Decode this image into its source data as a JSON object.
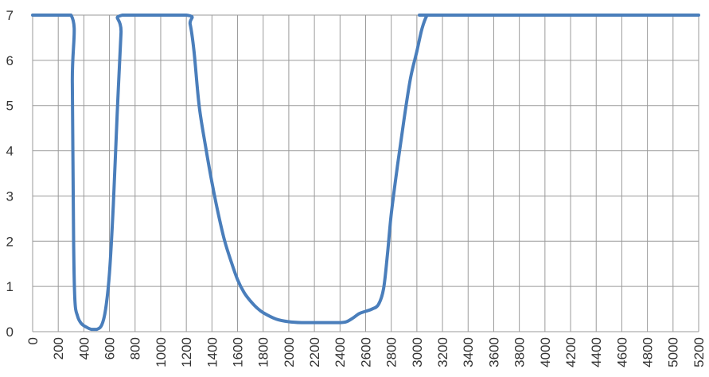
{
  "chart_data": {
    "type": "line",
    "title": "",
    "xlabel": "",
    "ylabel": "",
    "xlim": [
      0,
      5200
    ],
    "ylim": [
      0,
      7
    ],
    "x_ticks": [
      0,
      200,
      400,
      600,
      800,
      1000,
      1200,
      1400,
      1600,
      1800,
      2000,
      2200,
      2400,
      2600,
      2800,
      3000,
      3200,
      3400,
      3600,
      3800,
      4000,
      4200,
      4400,
      4600,
      4800,
      5000,
      5200
    ],
    "y_ticks": [
      0,
      1,
      2,
      3,
      4,
      5,
      6,
      7
    ],
    "grid": true,
    "x_tick_rotation": -90,
    "legend": "none",
    "colors": {
      "series": "#4a7ebb",
      "grid": "#9a9a9a"
    },
    "series": [
      {
        "x": [
          0,
          300,
          310,
          320,
          330,
          350,
          380,
          420,
          460,
          500,
          540,
          570,
          600,
          630,
          660,
          690,
          700,
          1200,
          1230,
          1260,
          1300,
          1350,
          1400,
          1450,
          1500,
          1550,
          1600,
          1650,
          1700,
          1750,
          1800,
          1900,
          2000,
          2100,
          2200,
          2300,
          2400,
          2450,
          2500,
          2550,
          2600,
          2650,
          2700,
          2740,
          2770,
          2800,
          2850,
          2900,
          2950,
          3000,
          3040,
          3080,
          3100,
          3200,
          5200
        ],
        "y": [
          7,
          7,
          5.5,
          2.0,
          0.7,
          0.35,
          0.18,
          0.1,
          0.05,
          0.05,
          0.15,
          0.5,
          1.3,
          2.8,
          4.8,
          6.6,
          7,
          7,
          6.8,
          6.2,
          5.0,
          4.1,
          3.3,
          2.6,
          2.0,
          1.55,
          1.15,
          0.87,
          0.68,
          0.53,
          0.42,
          0.28,
          0.22,
          0.2,
          0.2,
          0.2,
          0.2,
          0.22,
          0.3,
          0.4,
          0.45,
          0.5,
          0.6,
          0.95,
          1.7,
          2.6,
          3.7,
          4.7,
          5.6,
          6.2,
          6.7,
          7,
          7,
          7,
          7
        ]
      }
    ]
  }
}
